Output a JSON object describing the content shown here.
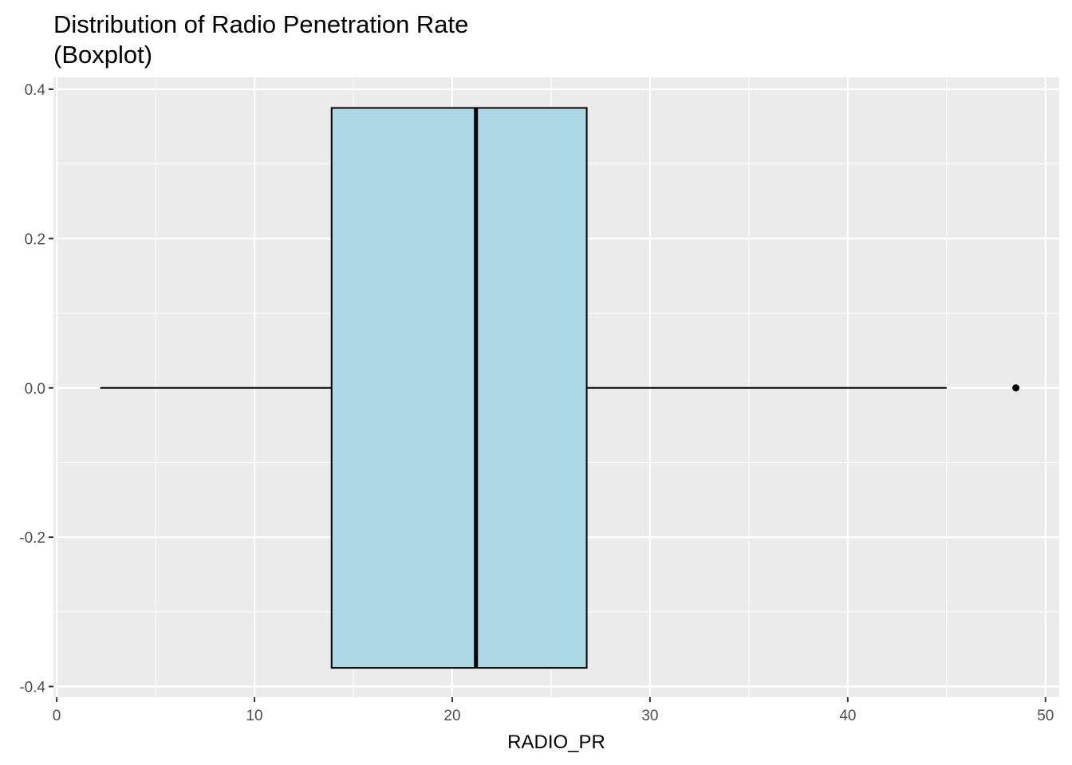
{
  "chart_data": {
    "type": "boxplot",
    "title_line1": "Distribution of Radio Penetration Rate",
    "title_line2": "(Boxplot)",
    "xlabel": "RADIO_PR",
    "ylabel": "",
    "xlim": [
      -0.2,
      50.4
    ],
    "ylim": [
      -0.4,
      0.4
    ],
    "x_ticks": [
      0,
      10,
      20,
      30,
      40,
      50
    ],
    "x_tick_labels": [
      "0",
      "10",
      "20",
      "30",
      "40",
      "50"
    ],
    "y_ticks": [
      0.4,
      0.2,
      0.0,
      -0.2,
      -0.4
    ],
    "y_tick_labels": [
      "0.4",
      "0.2",
      "0.0",
      "-0.2",
      "-0.4"
    ],
    "grid": true,
    "box": {
      "whisker_low": 2.2,
      "q1": 13.9,
      "median": 21.2,
      "q3": 26.8,
      "whisker_high": 45.0,
      "box_ymin": -0.375,
      "box_ymax": 0.375,
      "y": 0.0,
      "outliers": [
        48.5
      ]
    },
    "colors": {
      "panel_bg": "#EBEBEB",
      "grid": "#FFFFFF",
      "box_fill": "#ADD8E6",
      "box_stroke": "#000000"
    }
  }
}
